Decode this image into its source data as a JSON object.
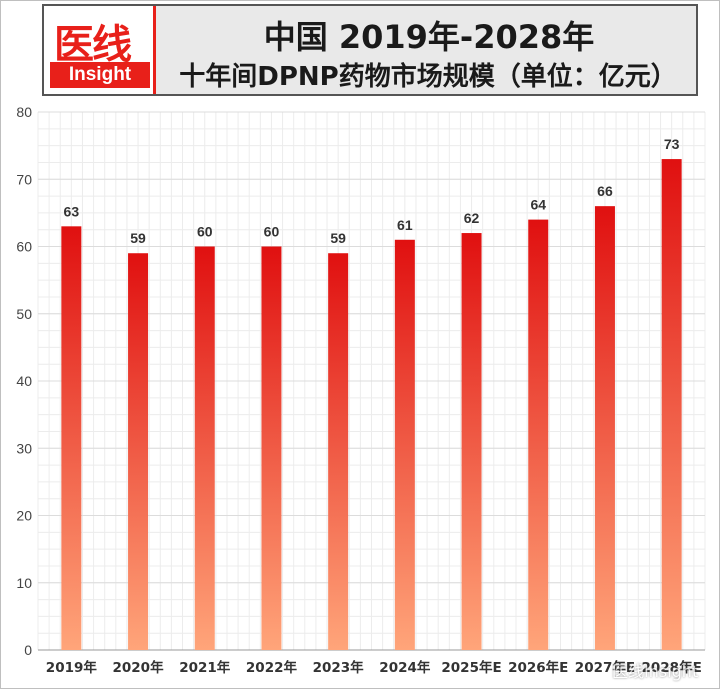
{
  "header": {
    "logo_cn": "医线",
    "logo_en": "Insight",
    "title": "中国 2019年-2028年",
    "subtitle": "十年间DPNP药物市场规模（单位：亿元）"
  },
  "watermark": "医线Insight",
  "chart_data": {
    "type": "bar",
    "title": "中国 2019年-2028年",
    "subtitle": "十年间DPNP药物市场规模（单位：亿元）",
    "categories": [
      "2019年",
      "2020年",
      "2021年",
      "2022年",
      "2023年",
      "2024年",
      "2025年E",
      "2026年E",
      "2027年E",
      "2028年E"
    ],
    "values": [
      63,
      59,
      60,
      60,
      59,
      61,
      62,
      64,
      66,
      73
    ],
    "ylim": [
      0,
      80
    ],
    "yticks": [
      0,
      10,
      20,
      30,
      40,
      50,
      60,
      70,
      80
    ],
    "grid": true,
    "legend": "none",
    "colors": {
      "bar_top": "#e01010",
      "bar_bottom": "#ffa57a",
      "label": "#333333",
      "grid": "#dcdcdc"
    }
  }
}
